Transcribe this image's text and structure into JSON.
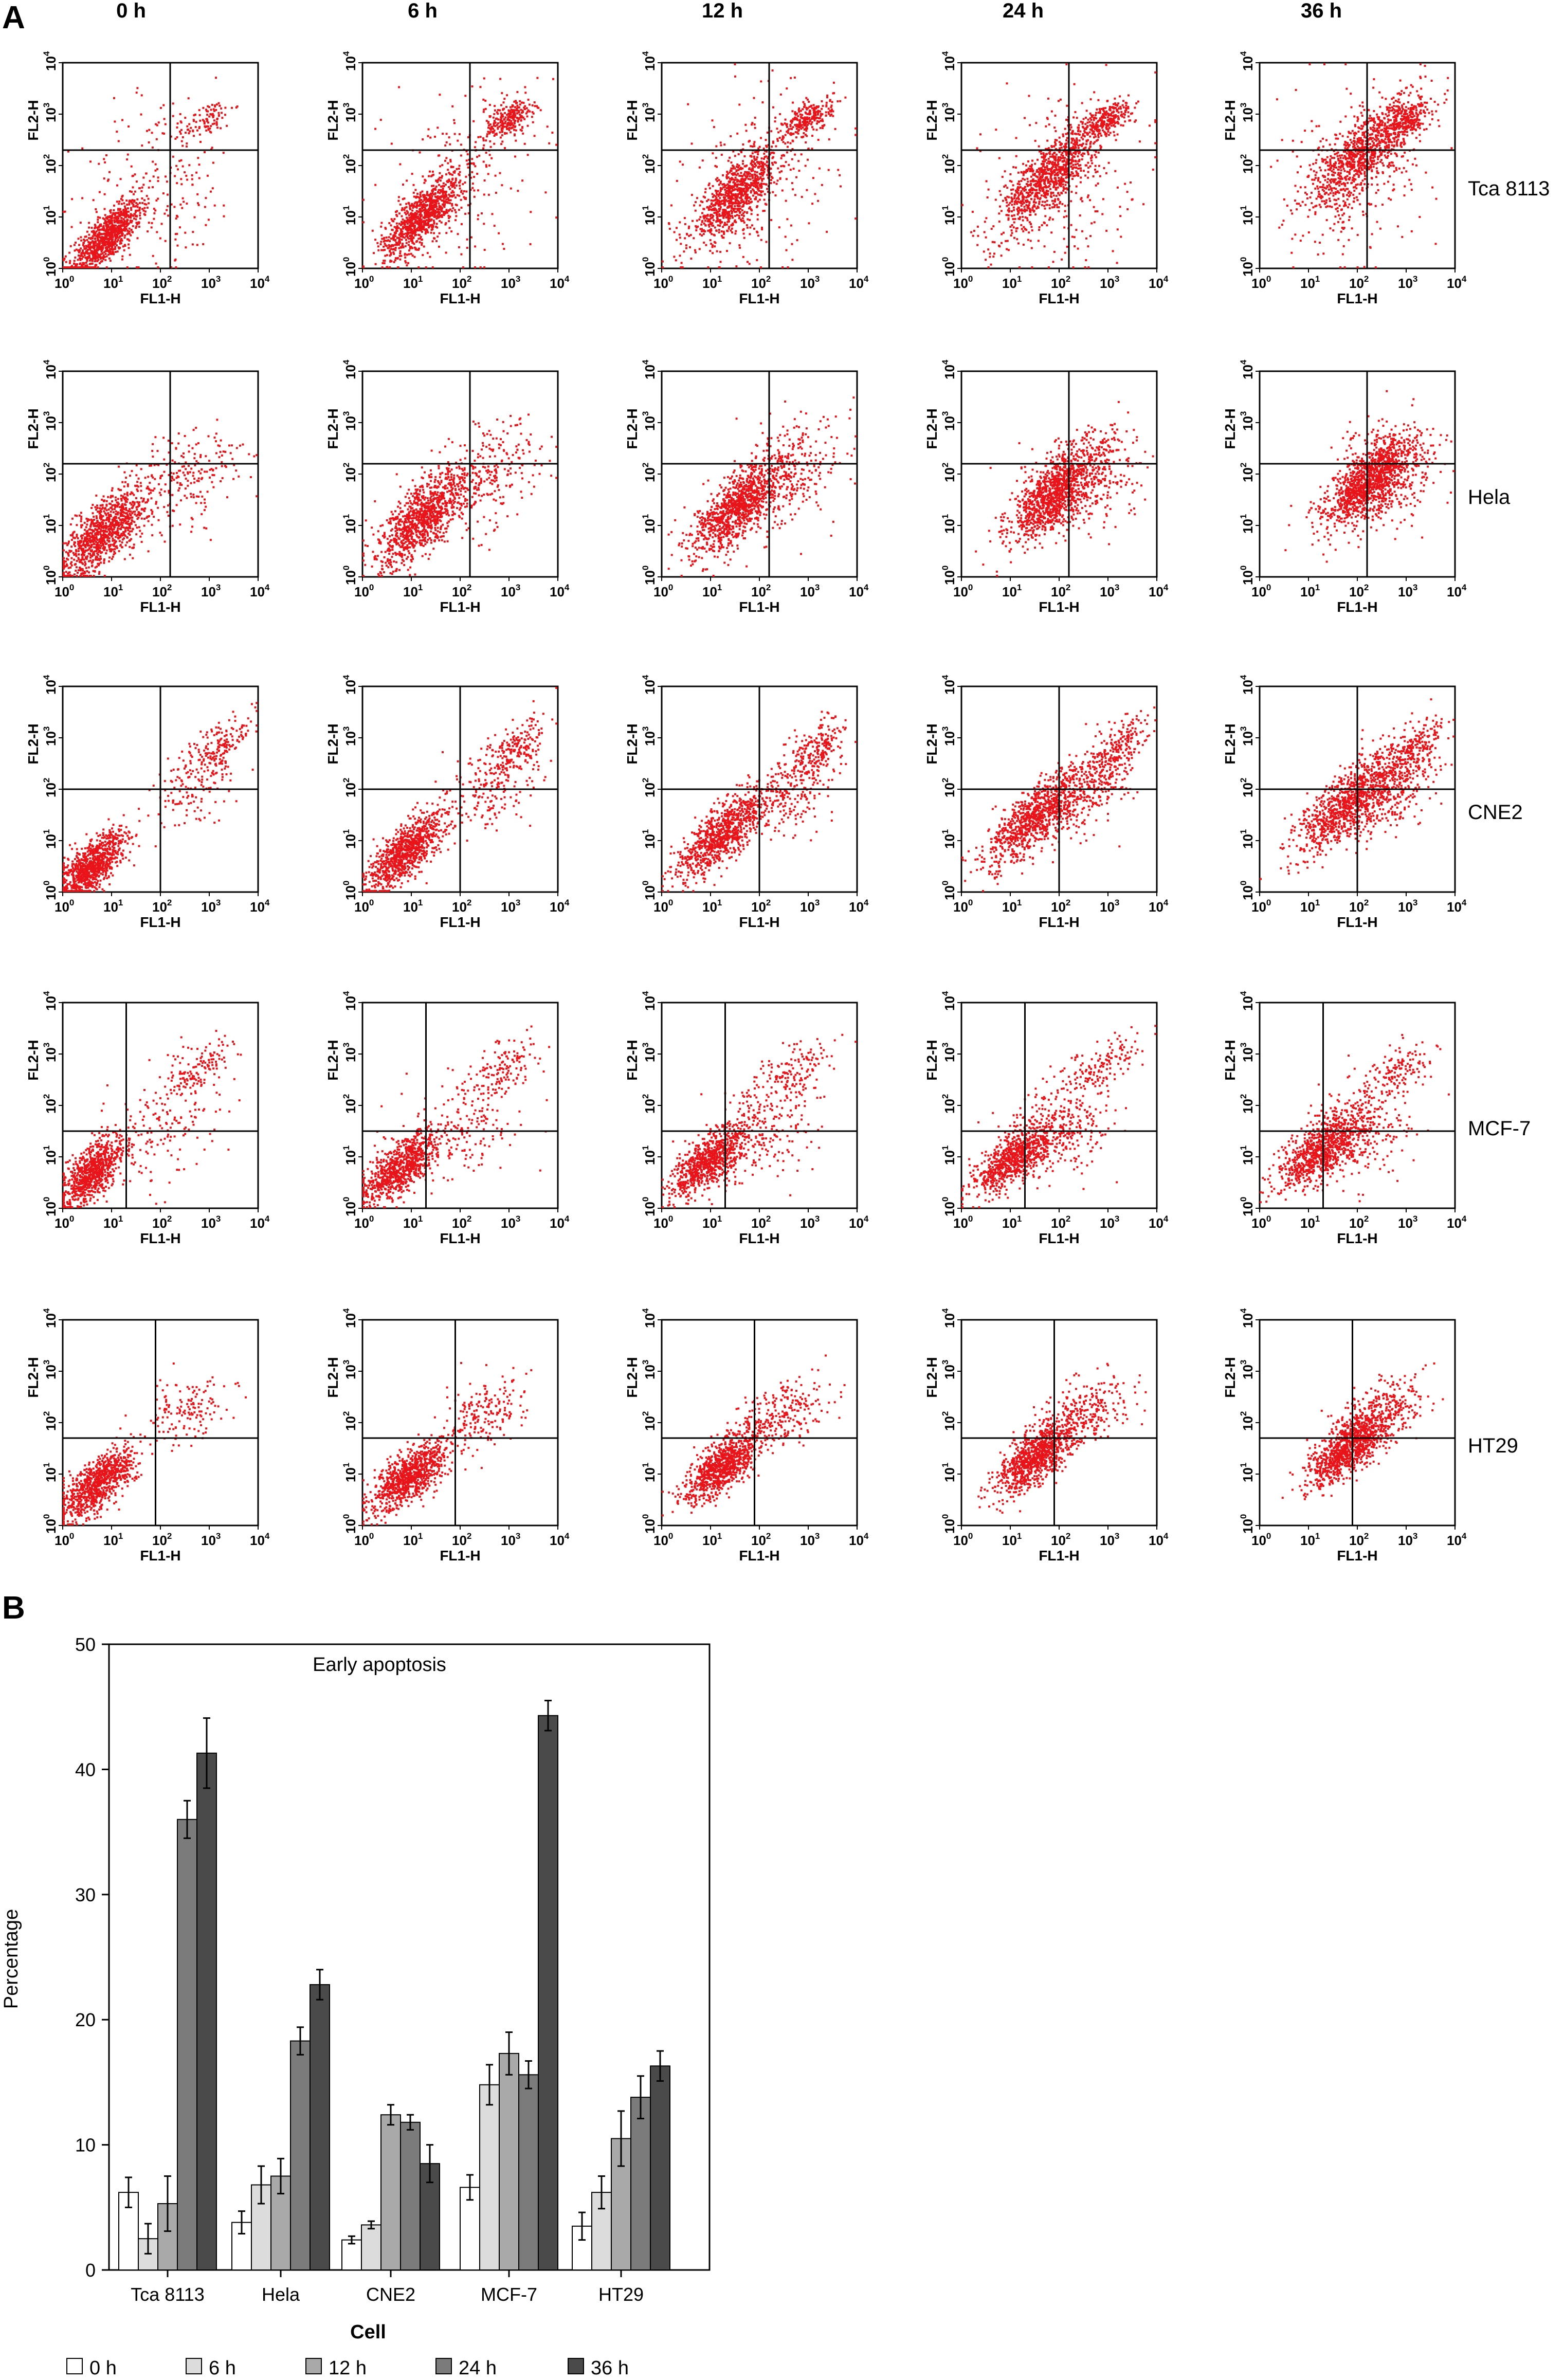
{
  "panel_a": {
    "letter": "A",
    "columns": [
      "0 h",
      "6 h",
      "12 h",
      "24 h",
      "36 h"
    ],
    "rows": [
      "Tca 8113",
      "Hela",
      "CNE2",
      "MCF-7",
      "HT29"
    ],
    "x_axis_label": "FL1-H",
    "y_axis_label": "FL2-H",
    "tick_base": "10",
    "tick_exponents": [
      "0",
      "1",
      "2",
      "3",
      "4"
    ],
    "point_color": "#e8141a"
  },
  "panel_b": {
    "letter": "B"
  },
  "chart_data": [
    {
      "type": "scatter",
      "title": "",
      "xlabel": "FL1-H",
      "ylabel": "FL2-H",
      "xscale": "log",
      "yscale": "log",
      "xlim": [
        1,
        10000
      ],
      "ylim": [
        1,
        10000
      ],
      "rows": [
        "Tca 8113",
        "Hela",
        "CNE2",
        "MCF-7",
        "HT29"
      ],
      "columns": [
        "0 h",
        "6 h",
        "12 h",
        "24 h",
        "36 h"
      ],
      "color": "#e8141a"
    },
    {
      "type": "bar",
      "title": "Early apoptosis",
      "xlabel": "Cell",
      "ylabel": "Percentage",
      "ylim": [
        0,
        50
      ],
      "yticks": [
        0,
        10,
        20,
        30,
        40,
        50
      ],
      "categories": [
        "Tca 8113",
        "Hela",
        "CNE2",
        "MCF-7",
        "HT29"
      ],
      "legend_position": "bottom",
      "series": [
        {
          "name": "0 h",
          "color": "#ffffff",
          "values": [
            6.2,
            3.8,
            2.4,
            6.6,
            3.5
          ],
          "errors": [
            1.2,
            0.9,
            0.3,
            1.0,
            1.1
          ]
        },
        {
          "name": "6 h",
          "color": "#dcdcdc",
          "values": [
            2.5,
            6.8,
            3.6,
            14.8,
            6.2
          ],
          "errors": [
            1.2,
            1.5,
            0.3,
            1.6,
            1.3
          ]
        },
        {
          "name": "12 h",
          "color": "#a9a9a9",
          "values": [
            5.3,
            7.5,
            12.4,
            17.3,
            10.5
          ],
          "errors": [
            2.2,
            1.4,
            0.8,
            1.7,
            2.2
          ]
        },
        {
          "name": "24 h",
          "color": "#7b7b7b",
          "values": [
            36.0,
            18.3,
            11.8,
            15.6,
            13.8
          ],
          "errors": [
            1.5,
            1.1,
            0.6,
            1.1,
            1.7
          ]
        },
        {
          "name": "36 h",
          "color": "#4a4a4a",
          "values": [
            41.3,
            22.8,
            8.5,
            44.3,
            16.3
          ],
          "errors": [
            2.8,
            1.2,
            1.5,
            1.2,
            1.2
          ]
        }
      ]
    }
  ]
}
